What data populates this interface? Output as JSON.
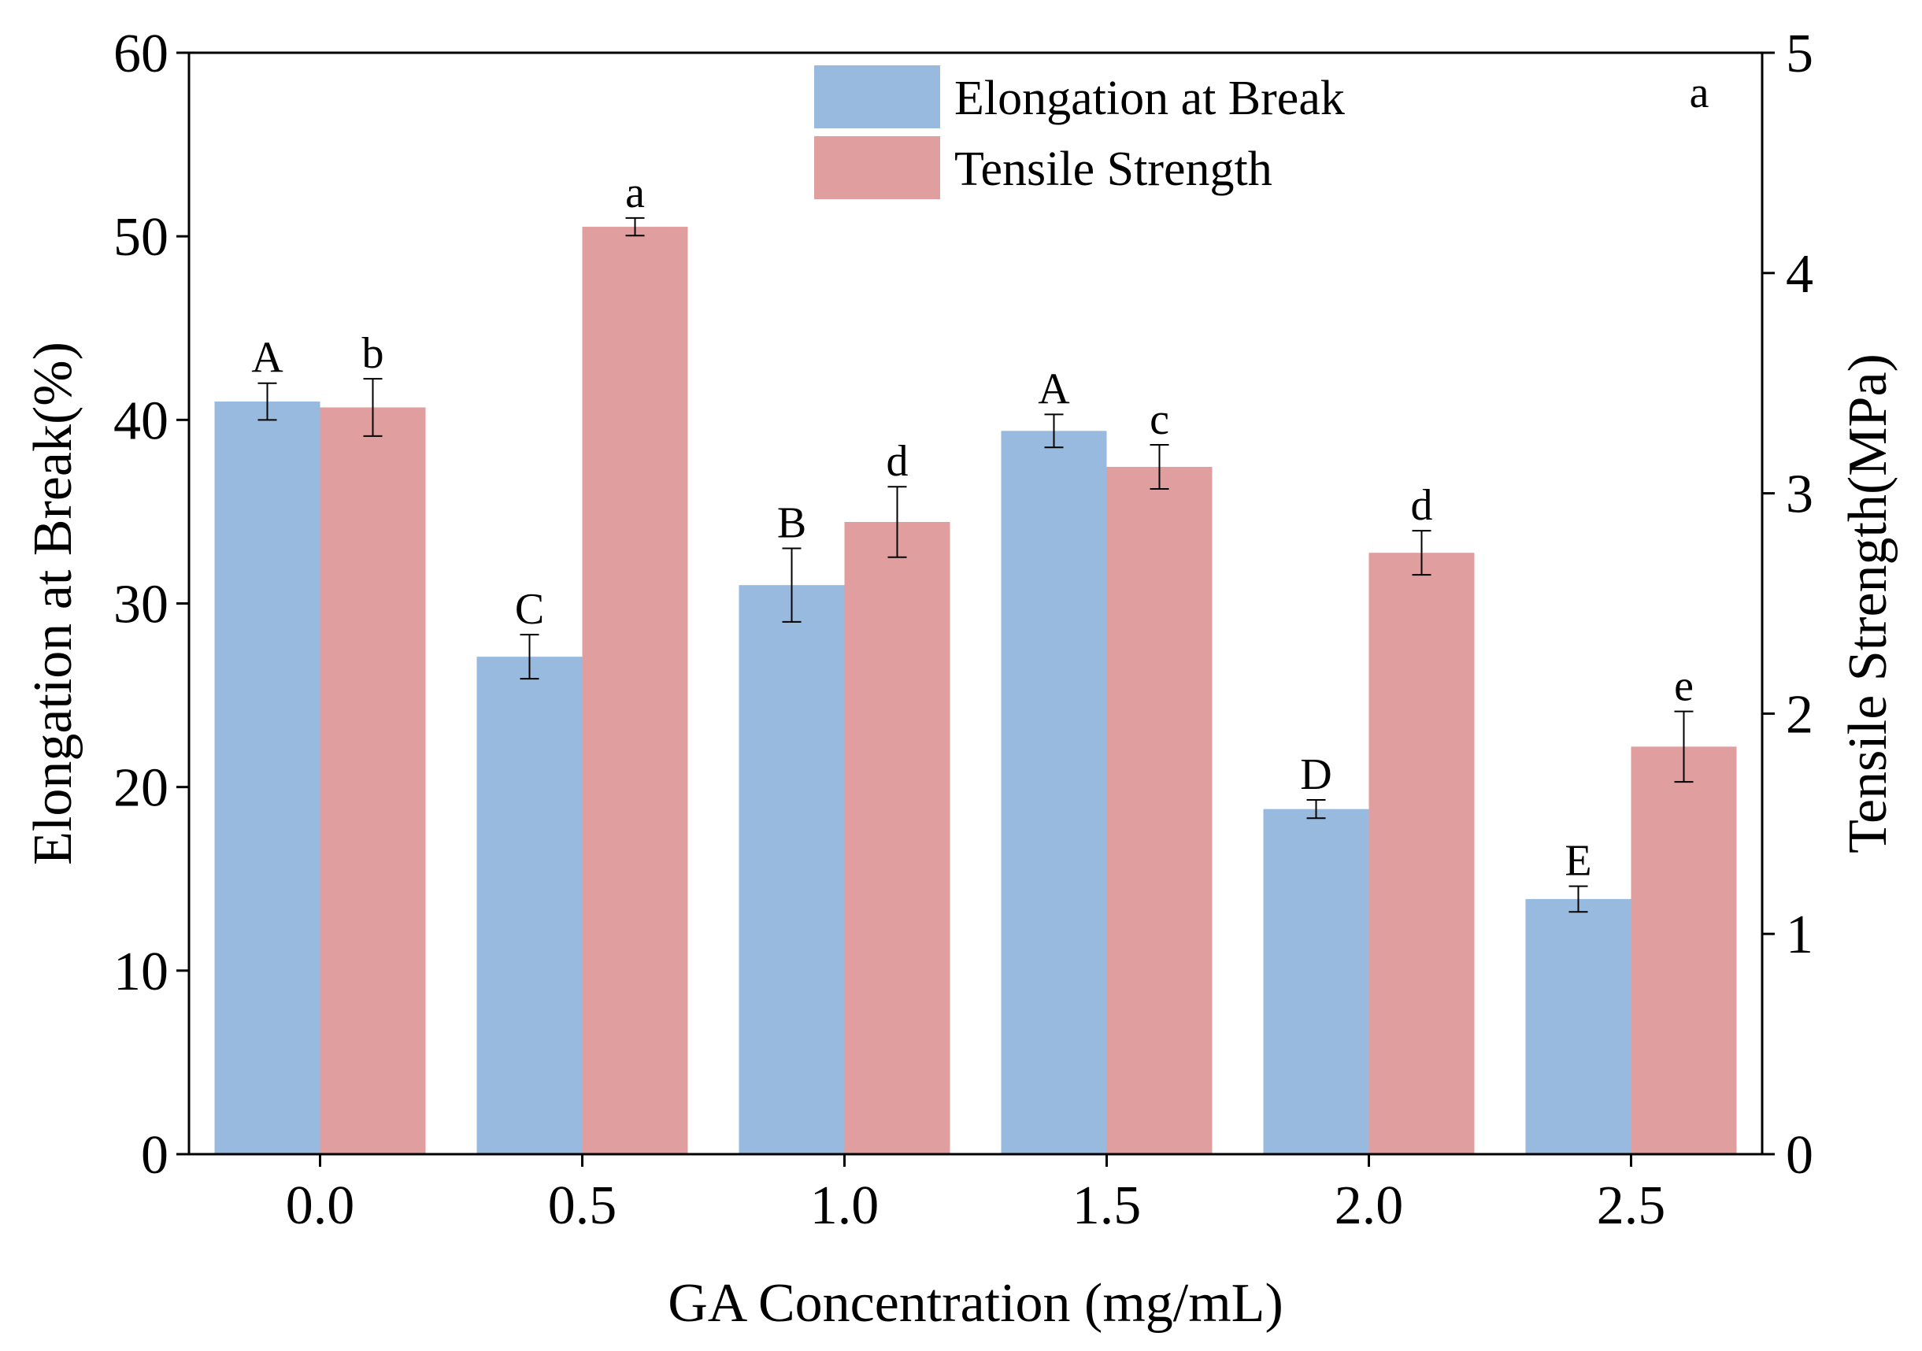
{
  "chart_data": {
    "type": "bar",
    "panel_label": "a",
    "xlabel": "GA Concentration (mg/mL)",
    "ylabel": "Elongation at Break(%)",
    "y2label": "Tensile Strength(MPa)",
    "categories": [
      "0.0",
      "0.5",
      "1.0",
      "1.5",
      "2.0",
      "2.5"
    ],
    "ylim": [
      0,
      60
    ],
    "y2lim": [
      0,
      5
    ],
    "yticks": [
      "0",
      "10",
      "20",
      "30",
      "40",
      "50",
      "60"
    ],
    "y2ticks": [
      "0",
      "1",
      "2",
      "3",
      "4",
      "5"
    ],
    "legend_position": "top",
    "grid": false,
    "series": [
      {
        "name": "Elongation at Break",
        "axis": "left",
        "color": "#99BADF",
        "values": [
          41.0,
          27.1,
          31.0,
          39.4,
          18.8,
          13.9
        ],
        "errors": [
          1.0,
          1.2,
          2.0,
          0.9,
          0.5,
          0.7
        ],
        "labels": [
          "A",
          "C",
          "B",
          "A",
          "D",
          "E"
        ]
      },
      {
        "name": "Tensile Strength",
        "axis": "right",
        "color": "#E09E9E",
        "values": [
          3.39,
          4.21,
          2.87,
          3.12,
          2.73,
          1.85
        ],
        "errors": [
          0.13,
          0.04,
          0.16,
          0.1,
          0.1,
          0.16
        ],
        "labels": [
          "b",
          "a",
          "d",
          "c",
          "d",
          "e"
        ]
      }
    ]
  }
}
